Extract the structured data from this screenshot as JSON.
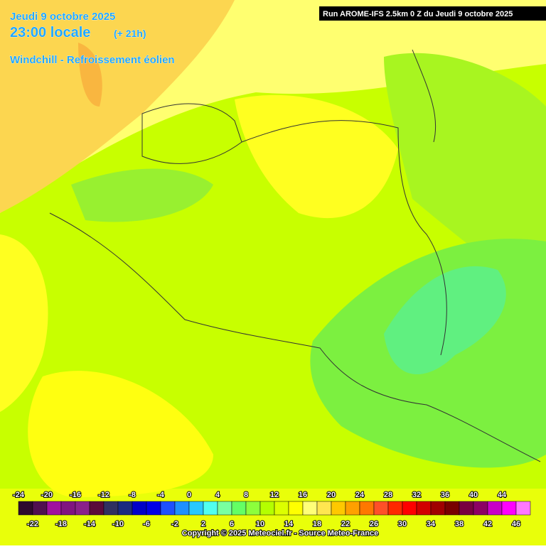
{
  "header": {
    "date": "Jeudi 9 octobre 2025",
    "time": "23:00 locale",
    "lead": "(+ 21h)",
    "subtitle": "Windchill - Refroissement éolien"
  },
  "run": "Run AROME-IFS 2.5km 0 Z du Jeudi 9 octobre 2025",
  "legend": {
    "values": [
      -24,
      -22,
      -20,
      -18,
      -16,
      -14,
      -12,
      -10,
      -8,
      -6,
      -4,
      -2,
      0,
      2,
      4,
      6,
      8,
      10,
      12,
      14,
      16,
      18,
      20,
      22,
      24,
      26,
      28,
      30,
      32,
      34,
      36,
      38,
      40,
      42,
      44,
      46
    ],
    "colors": [
      "#2e0a2e",
      "#501050",
      "#a010a0",
      "#801480",
      "#8a208a",
      "#5a0a3a",
      "#303060",
      "#1a2a80",
      "#0000c8",
      "#0000e6",
      "#1e50ff",
      "#1e90ff",
      "#28c8ff",
      "#50fff0",
      "#78ffa0",
      "#64ff64",
      "#8cff3c",
      "#b4ff00",
      "#dcff00",
      "#ffff00",
      "#ffff78",
      "#ffe650",
      "#ffc800",
      "#ffa000",
      "#ff7800",
      "#ff5028",
      "#ff2800",
      "#ff0000",
      "#d20000",
      "#a00000",
      "#780000",
      "#780040",
      "#8c0064",
      "#c800c8",
      "#ff00ff",
      "#ff78ff"
    ]
  },
  "copyright": "Copyright © 2025 Meteociel.fr - Source Meteo-France"
}
